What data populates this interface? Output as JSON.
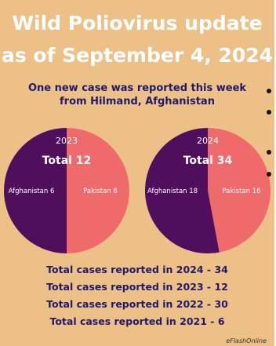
{
  "title_line1": "Wild Poliovirus update",
  "title_line2": "as of September 4, 2024",
  "subtitle_line1": "One new case was reported this week",
  "subtitle_line2": "from Hilmand, Afghanistan",
  "totals": [
    "Total cases reported in 2024 - 34",
    "Total cases reported in 2023 - 12",
    "Total cases reported in 2022 - 30",
    "Total cases reported in 2021  - 6"
  ],
  "credit": "eFlashOnline",
  "colors": {
    "background": "#edc088",
    "afghanistan": "#4f0f5c",
    "pakistan": "#ef6a6a",
    "title": "#ffffff",
    "text": "#1f1a6b"
  },
  "chart_data": [
    {
      "type": "pie",
      "year_label": "2023",
      "total_label": "Total 12",
      "total": 12,
      "slices": [
        {
          "name": "Afghanistan",
          "value": 6,
          "label": "Afghanistan 6",
          "color": "#4f0f5c"
        },
        {
          "name": "Pakistan",
          "value": 6,
          "label": "Pakistan 6",
          "color": "#ef6a6a"
        }
      ]
    },
    {
      "type": "pie",
      "year_label": "2024",
      "total_label": "Total 34",
      "total": 34,
      "slices": [
        {
          "name": "Afghanistan",
          "value": 18,
          "label": "Afghanistan 18",
          "color": "#4f0f5c"
        },
        {
          "name": "Pakistan",
          "value": 16,
          "label": "Pakistan 16",
          "color": "#ef6a6a"
        }
      ]
    }
  ]
}
